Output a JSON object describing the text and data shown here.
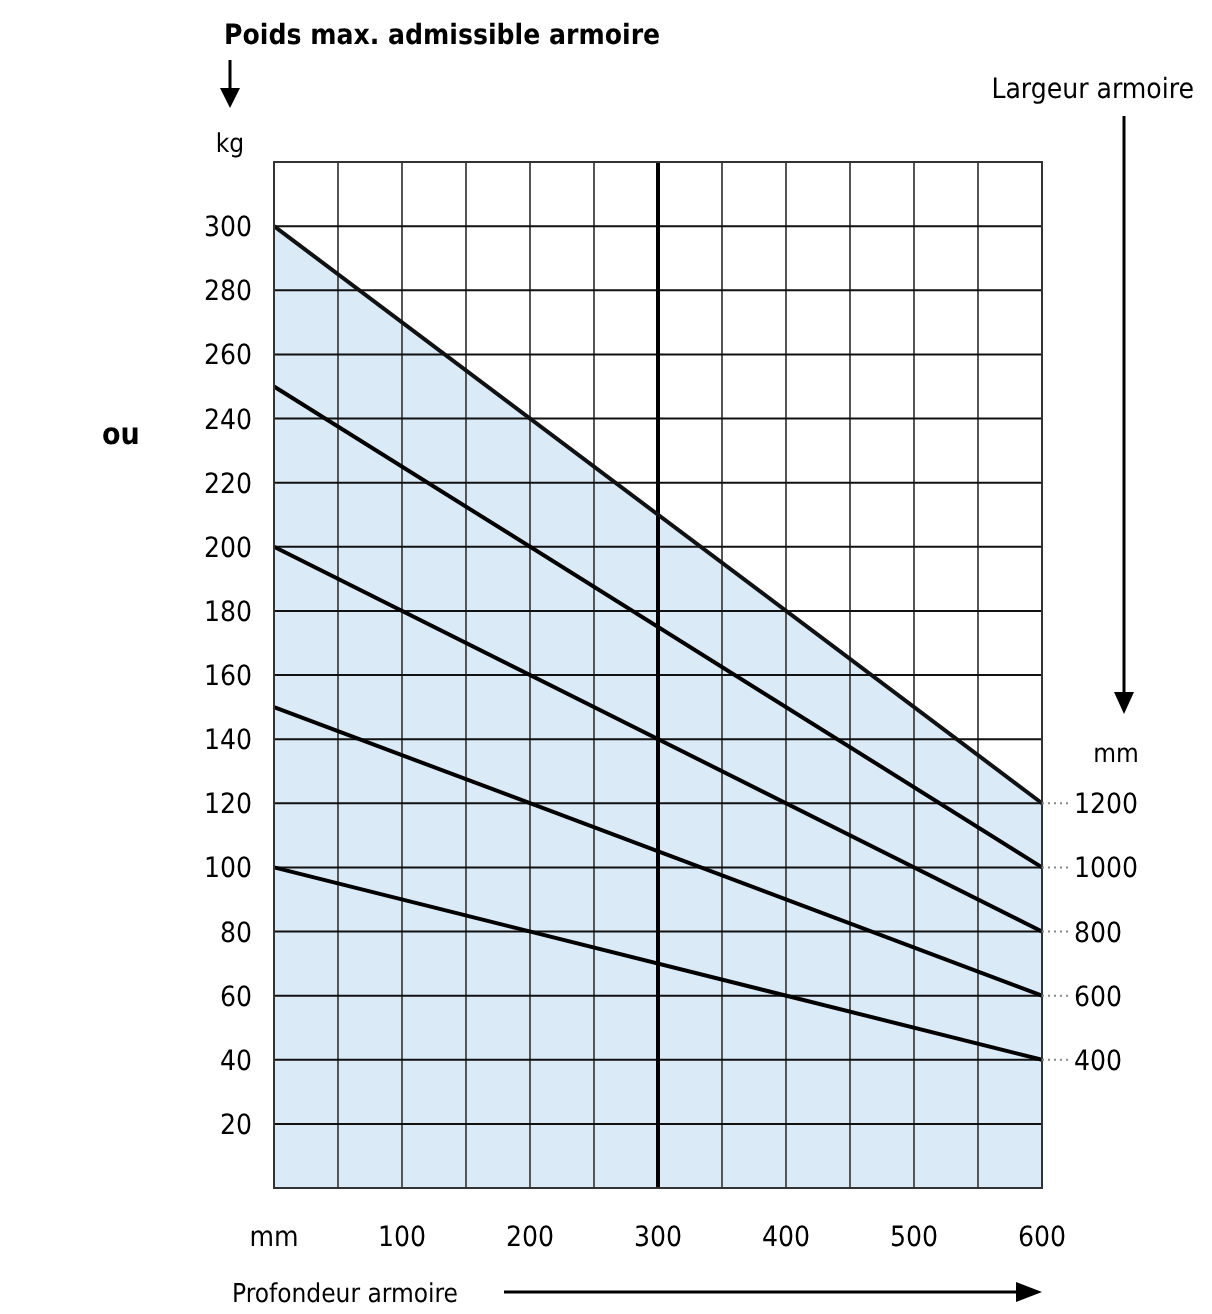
{
  "chart_data": {
    "type": "line",
    "title": "Poids max. admissible armoire",
    "xlabel": "Profondeur armoire",
    "ylabel": "kg",
    "annotations": [
      "ou",
      "Largeur armoire",
      "mm"
    ],
    "x": [
      0,
      600
    ],
    "series": [
      {
        "name": "1200",
        "type": "area",
        "color": "#dbeaf7",
        "values": [
          300,
          120
        ]
      },
      {
        "name": "1000",
        "color": "#000000",
        "values": [
          250,
          100
        ]
      },
      {
        "name": "800",
        "color": "#000000",
        "values": [
          200,
          80
        ]
      },
      {
        "name": "600",
        "color": "#000000",
        "values": [
          150,
          60
        ]
      },
      {
        "name": "400",
        "color": "#000000",
        "values": [
          100,
          40
        ]
      }
    ],
    "xlim": [
      0,
      600
    ],
    "xticks": [
      {
        "value": 0,
        "label": "mm"
      },
      {
        "value": 50,
        "label": null
      },
      100,
      {
        "value": 150,
        "label": null
      },
      200,
      {
        "value": 250,
        "label": null
      },
      300,
      {
        "value": 350,
        "label": null
      },
      400,
      {
        "value": 450,
        "label": null
      },
      500,
      {
        "value": 550,
        "label": null
      },
      600
    ],
    "ylim": [
      0,
      320
    ],
    "yticks": [
      {
        "value": 0,
        "label": null
      },
      20,
      40,
      60,
      80,
      100,
      120,
      140,
      160,
      180,
      200,
      220,
      240,
      260,
      280,
      300,
      {
        "value": 320,
        "label": null
      }
    ],
    "ref_lines": [
      {
        "axis": "x",
        "value": 300,
        "color": "#000000"
      }
    ],
    "grid": true,
    "marker": "none",
    "line_style": "solid"
  }
}
